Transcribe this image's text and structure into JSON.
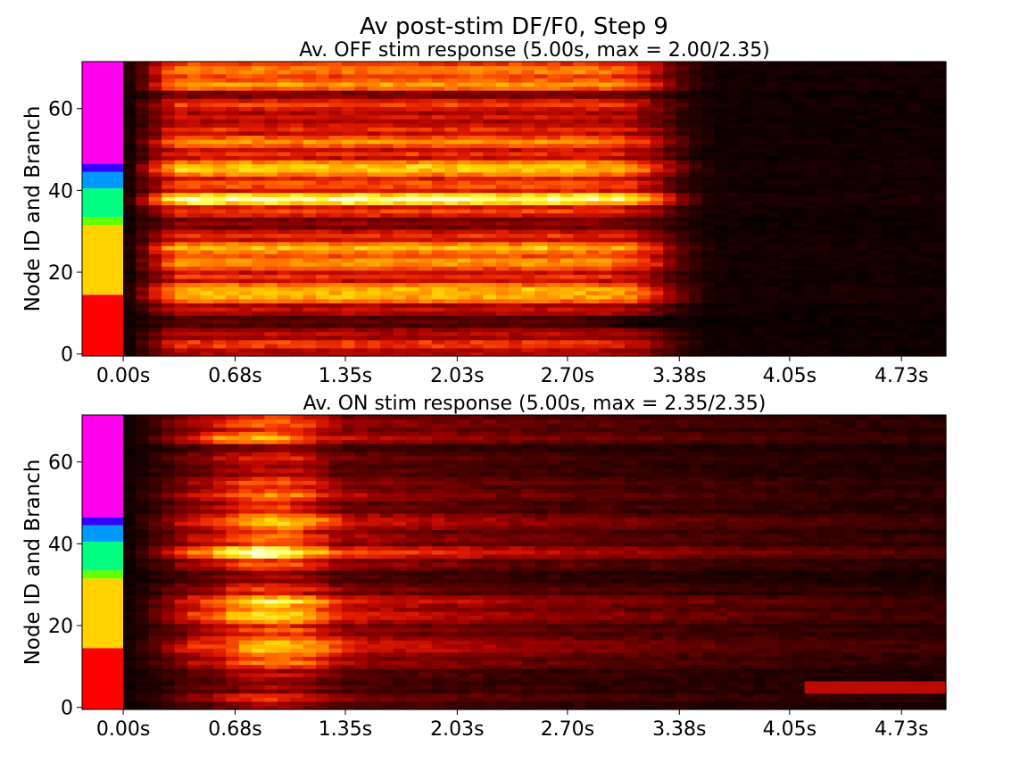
{
  "figure": {
    "suptitle": "Av post-stim DF/F0, Step 9"
  },
  "colors": {
    "heat_stops": [
      "#000000",
      "#230000",
      "#5a0000",
      "#a00000",
      "#e01a00",
      "#ff5a00",
      "#ff9a00",
      "#ffd400",
      "#ffff6a",
      "#ffffe8"
    ],
    "branch_colors": [
      "#ff0000",
      "#ffd200",
      "#62ff00",
      "#00ff80",
      "#0099ff",
      "#3300ff",
      "#ff00ee"
    ]
  },
  "chart_data": [
    {
      "type": "heatmap",
      "title": "Av. OFF stim response (5.00s, max = 2.00/2.35)",
      "ylabel": "Node ID and Branch",
      "xlabel": "",
      "xtick_labels": [
        "0.00s",
        "0.68s",
        "1.35s",
        "2.03s",
        "2.70s",
        "3.38s",
        "4.05s",
        "4.73s"
      ],
      "xtick_values": [
        0.0,
        0.68,
        1.35,
        2.03,
        2.7,
        3.38,
        4.05,
        4.73
      ],
      "xlim": [
        -0.25,
        5.0
      ],
      "ytick_labels": [
        "0",
        "20",
        "40",
        "60"
      ],
      "ytick_values": [
        0,
        20,
        40,
        60
      ],
      "ylim": [
        -0.5,
        71.5
      ],
      "n_rows": 72,
      "colorbar": false,
      "vmax": 2.35,
      "max_value": 2.0,
      "branches": [
        {
          "start": 0,
          "end": 14,
          "color": "#ff0000"
        },
        {
          "start": 15,
          "end": 31,
          "color": "#ffd200"
        },
        {
          "start": 32,
          "end": 33,
          "color": "#62ff00"
        },
        {
          "start": 34,
          "end": 40,
          "color": "#00ff80"
        },
        {
          "start": 41,
          "end": 44,
          "color": "#0099ff"
        },
        {
          "start": 45,
          "end": 46,
          "color": "#3300ff"
        },
        {
          "start": 47,
          "end": 71,
          "color": "#ff00ee"
        }
      ],
      "segments": [
        {
          "rows": [
            0,
            1
          ],
          "level": 0.4,
          "rise": 0.3,
          "decay": 3.3
        },
        {
          "rows": [
            2,
            3
          ],
          "level": 0.55,
          "rise": 0.3,
          "decay": 3.3
        },
        {
          "rows": [
            4,
            6
          ],
          "level": 0.35,
          "rise": 0.3,
          "decay": 3.3
        },
        {
          "rows": [
            7,
            9
          ],
          "level": 0.2,
          "rise": 0.3,
          "decay": 3.0
        },
        {
          "rows": [
            10,
            12
          ],
          "level": 0.38,
          "rise": 0.3,
          "decay": 3.3
        },
        {
          "rows": [
            13,
            17
          ],
          "level": 0.68,
          "rise": 0.3,
          "decay": 3.3
        },
        {
          "rows": [
            18,
            20
          ],
          "level": 0.45,
          "rise": 0.3,
          "decay": 3.3
        },
        {
          "rows": [
            21,
            24
          ],
          "level": 0.62,
          "rise": 0.3,
          "decay": 3.3
        },
        {
          "rows": [
            25,
            27
          ],
          "level": 0.7,
          "rise": 0.3,
          "decay": 3.3
        },
        {
          "rows": [
            28,
            30
          ],
          "level": 0.45,
          "rise": 0.3,
          "decay": 3.3
        },
        {
          "rows": [
            31,
            33
          ],
          "level": 0.28,
          "rise": 0.3,
          "decay": 3.3
        },
        {
          "rows": [
            34,
            36
          ],
          "level": 0.48,
          "rise": 0.3,
          "decay": 3.3
        },
        {
          "rows": [
            37,
            39
          ],
          "level": 0.92,
          "rise": 0.3,
          "decay": 3.3
        },
        {
          "rows": [
            40,
            43
          ],
          "level": 0.5,
          "rise": 0.3,
          "decay": 3.3
        },
        {
          "rows": [
            44,
            47
          ],
          "level": 0.72,
          "rise": 0.3,
          "decay": 3.3
        },
        {
          "rows": [
            48,
            50
          ],
          "level": 0.45,
          "rise": 0.3,
          "decay": 3.3
        },
        {
          "rows": [
            51,
            53
          ],
          "level": 0.62,
          "rise": 0.3,
          "decay": 3.3
        },
        {
          "rows": [
            54,
            56
          ],
          "level": 0.45,
          "rise": 0.3,
          "decay": 3.3
        },
        {
          "rows": [
            57,
            59
          ],
          "level": 0.4,
          "rise": 0.3,
          "decay": 3.3
        },
        {
          "rows": [
            60,
            62
          ],
          "level": 0.48,
          "rise": 0.3,
          "decay": 3.3
        },
        {
          "rows": [
            63,
            64
          ],
          "level": 0.3,
          "rise": 0.3,
          "decay": 3.3
        },
        {
          "rows": [
            65,
            67
          ],
          "level": 0.65,
          "rise": 0.3,
          "decay": 3.3
        },
        {
          "rows": [
            68,
            71
          ],
          "level": 0.58,
          "rise": 0.3,
          "decay": 3.3
        }
      ]
    },
    {
      "type": "heatmap",
      "title": "Av. ON stim response (5.00s, max = 2.35/2.35)",
      "ylabel": "Node ID and Branch",
      "xlabel": "",
      "xtick_labels": [
        "0.00s",
        "0.68s",
        "1.35s",
        "2.03s",
        "2.70s",
        "3.38s",
        "4.05s",
        "4.73s"
      ],
      "xtick_values": [
        0.0,
        0.68,
        1.35,
        2.03,
        2.7,
        3.38,
        4.05,
        4.73
      ],
      "xlim": [
        -0.25,
        5.0
      ],
      "ytick_labels": [
        "0",
        "20",
        "40",
        "60"
      ],
      "ytick_values": [
        0,
        20,
        40,
        60
      ],
      "ylim": [
        -0.5,
        71.5
      ],
      "n_rows": 72,
      "colorbar": false,
      "vmax": 2.35,
      "max_value": 2.35,
      "branches": [
        {
          "start": 0,
          "end": 14,
          "color": "#ff0000"
        },
        {
          "start": 15,
          "end": 31,
          "color": "#ffd200"
        },
        {
          "start": 32,
          "end": 33,
          "color": "#62ff00"
        },
        {
          "start": 34,
          "end": 40,
          "color": "#00ff80"
        },
        {
          "start": 41,
          "end": 44,
          "color": "#0099ff"
        },
        {
          "start": 45,
          "end": 46,
          "color": "#3300ff"
        },
        {
          "start": 47,
          "end": 71,
          "color": "#ff00ee"
        }
      ],
      "segments": [
        {
          "rows": [
            0,
            1
          ],
          "level": 0.35,
          "peak": 0.9,
          "decay": 4.5
        },
        {
          "rows": [
            2,
            3
          ],
          "level": 0.55,
          "peak": 0.9,
          "decay": 4.5
        },
        {
          "rows": [
            4,
            6
          ],
          "level": 0.32,
          "peak": 0.9,
          "decay": 5.5
        },
        {
          "rows": [
            7,
            9
          ],
          "level": 0.38,
          "peak": 0.9,
          "decay": 4.5
        },
        {
          "rows": [
            10,
            12
          ],
          "level": 0.6,
          "peak": 0.95,
          "decay": 4.5
        },
        {
          "rows": [
            13,
            17
          ],
          "level": 0.72,
          "peak": 0.95,
          "decay": 4.5
        },
        {
          "rows": [
            18,
            20
          ],
          "level": 0.55,
          "peak": 0.9,
          "decay": 4.5
        },
        {
          "rows": [
            21,
            24
          ],
          "level": 0.78,
          "peak": 0.9,
          "decay": 4.5
        },
        {
          "rows": [
            25,
            27
          ],
          "level": 0.82,
          "peak": 0.9,
          "decay": 4.5
        },
        {
          "rows": [
            28,
            30
          ],
          "level": 0.5,
          "peak": 0.9,
          "decay": 4.5
        },
        {
          "rows": [
            31,
            33
          ],
          "level": 0.32,
          "peak": 0.9,
          "decay": 4.5
        },
        {
          "rows": [
            34,
            36
          ],
          "level": 0.55,
          "peak": 0.9,
          "decay": 4.5
        },
        {
          "rows": [
            37,
            39
          ],
          "level": 1.0,
          "peak": 0.85,
          "decay": 4.5
        },
        {
          "rows": [
            40,
            43
          ],
          "level": 0.58,
          "peak": 0.9,
          "decay": 4.5
        },
        {
          "rows": [
            44,
            47
          ],
          "level": 0.72,
          "peak": 0.95,
          "decay": 4.5
        },
        {
          "rows": [
            48,
            50
          ],
          "level": 0.48,
          "peak": 0.9,
          "decay": 4.5
        },
        {
          "rows": [
            51,
            53
          ],
          "level": 0.62,
          "peak": 0.9,
          "decay": 4.5
        },
        {
          "rows": [
            54,
            56
          ],
          "level": 0.55,
          "peak": 0.9,
          "decay": 4.5
        },
        {
          "rows": [
            57,
            59
          ],
          "level": 0.38,
          "peak": 0.9,
          "decay": 4.5
        },
        {
          "rows": [
            60,
            62
          ],
          "level": 0.45,
          "peak": 0.9,
          "decay": 4.5
        },
        {
          "rows": [
            63,
            64
          ],
          "level": 0.32,
          "peak": 0.9,
          "decay": 4.5
        },
        {
          "rows": [
            65,
            67
          ],
          "level": 0.7,
          "peak": 0.8,
          "decay": 4.5
        },
        {
          "rows": [
            68,
            71
          ],
          "level": 0.55,
          "peak": 0.9,
          "decay": 4.5
        }
      ]
    }
  ]
}
